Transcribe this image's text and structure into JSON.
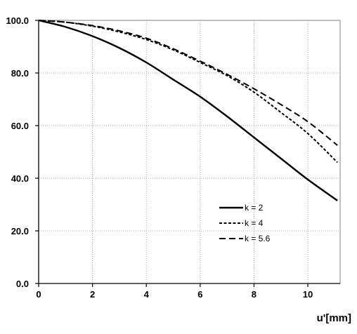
{
  "chart_data": {
    "type": "line",
    "title": "",
    "xlabel": "u'[mm]",
    "ylabel": "",
    "xlim": [
      0,
      11.2
    ],
    "ylim": [
      0,
      100
    ],
    "xticks": [
      "0",
      "2",
      "4",
      "6",
      "8",
      "10"
    ],
    "xtick_values": [
      0,
      2,
      4,
      6,
      8,
      10
    ],
    "yticks": [
      "0.0",
      "20.0",
      "40.0",
      "60.0",
      "80.0",
      "100.0"
    ],
    "ytick_values": [
      0,
      20,
      40,
      60,
      80,
      100
    ],
    "grid": true,
    "legend_position": "lower-right",
    "series": [
      {
        "name": "k = 2",
        "style": "solid",
        "x": [
          0,
          1,
          2,
          3,
          4,
          5,
          6,
          7,
          8,
          9,
          10,
          11.1
        ],
        "y": [
          100,
          97.5,
          94,
          89.5,
          84,
          77.5,
          71,
          63.5,
          55.5,
          47.5,
          39.5,
          31.5
        ]
      },
      {
        "name": "k = 4",
        "style": "dotted-dash",
        "x": [
          0,
          1,
          2,
          3,
          4,
          5,
          6,
          7,
          8,
          9,
          10,
          11.1
        ],
        "y": [
          100,
          99.3,
          97.8,
          95.6,
          92.7,
          88.8,
          84,
          79,
          72.7,
          65,
          57,
          46
        ]
      },
      {
        "name": "k = 5.6",
        "style": "long-dash",
        "x": [
          0,
          1,
          2,
          3,
          4,
          5,
          6,
          7,
          8,
          9,
          10,
          11.1
        ],
        "y": [
          100,
          99.3,
          98,
          96,
          93.2,
          89.2,
          84.5,
          79.5,
          74,
          68,
          61.5,
          52.5
        ]
      }
    ]
  }
}
